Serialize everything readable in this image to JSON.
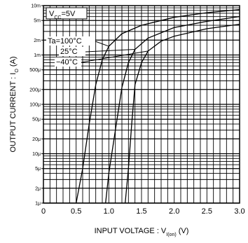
{
  "chart_data": {
    "type": "line",
    "title": "",
    "xlabel": "INPUT  VOLTAGE : V",
    "xlabel_sub": "I(on)",
    "xlabel_unit": " (V)",
    "ylabel": "OUTPUT  CURRENT : I",
    "ylabel_sub": "O",
    "ylabel_unit": " (A)",
    "condition": "VCC=5V",
    "condition_main": "V",
    "condition_sub": "CC",
    "condition_rest": "=5V",
    "xlim": [
      0,
      3.0
    ],
    "ylim": [
      1e-06,
      0.01
    ],
    "yscale": "log",
    "grid": true,
    "x_ticks": [
      "0",
      "0.5",
      "1.0",
      "1.5",
      "2.0",
      "2.5",
      "3.0"
    ],
    "y_ticks": [
      {
        "value": 1e-06,
        "label": "1μ"
      },
      {
        "value": 2e-06,
        "label": "2μ"
      },
      {
        "value": 5e-06,
        "label": "5μ"
      },
      {
        "value": 1e-05,
        "label": "10μ"
      },
      {
        "value": 2e-05,
        "label": "20μ"
      },
      {
        "value": 5e-05,
        "label": "50μ"
      },
      {
        "value": 0.0001,
        "label": "100μ"
      },
      {
        "value": 0.0002,
        "label": "200μ"
      },
      {
        "value": 0.0005,
        "label": "500μ"
      },
      {
        "value": 0.001,
        "label": "1m"
      },
      {
        "value": 0.002,
        "label": "2m"
      },
      {
        "value": 0.005,
        "label": "5m"
      },
      {
        "value": 0.01,
        "label": "10m"
      }
    ],
    "series": [
      {
        "name": "Ta=100°C",
        "points": [
          [
            0.5,
            1e-06
          ],
          [
            0.6,
            5e-06
          ],
          [
            0.7,
            4e-05
          ],
          [
            0.8,
            0.00025
          ],
          [
            0.9,
            0.0008
          ],
          [
            1.0,
            0.0015
          ],
          [
            1.2,
            0.0027
          ],
          [
            1.5,
            0.004
          ],
          [
            2.0,
            0.0058
          ],
          [
            2.5,
            0.0072
          ],
          [
            3.0,
            0.0083
          ]
        ]
      },
      {
        "name": "25°C",
        "points": [
          [
            0.95,
            1e-06
          ],
          [
            1.0,
            4e-06
          ],
          [
            1.1,
            3e-05
          ],
          [
            1.2,
            0.00022
          ],
          [
            1.3,
            0.0007
          ],
          [
            1.4,
            0.0013
          ],
          [
            1.6,
            0.0022
          ],
          [
            2.0,
            0.0036
          ],
          [
            2.5,
            0.0048
          ],
          [
            3.0,
            0.006
          ]
        ]
      },
      {
        "name": "−40°C",
        "points": [
          [
            1.25,
            1e-06
          ],
          [
            1.3,
            5e-06
          ],
          [
            1.35,
            4e-05
          ],
          [
            1.4,
            0.00025
          ],
          [
            1.5,
            0.0007
          ],
          [
            1.6,
            0.0012
          ],
          [
            1.8,
            0.0019
          ],
          [
            2.0,
            0.0024
          ],
          [
            2.5,
            0.0034
          ],
          [
            3.0,
            0.0042
          ]
        ]
      }
    ]
  },
  "colors": {
    "ink": "#000000",
    "grid": "#000000",
    "background": "#ffffff"
  }
}
